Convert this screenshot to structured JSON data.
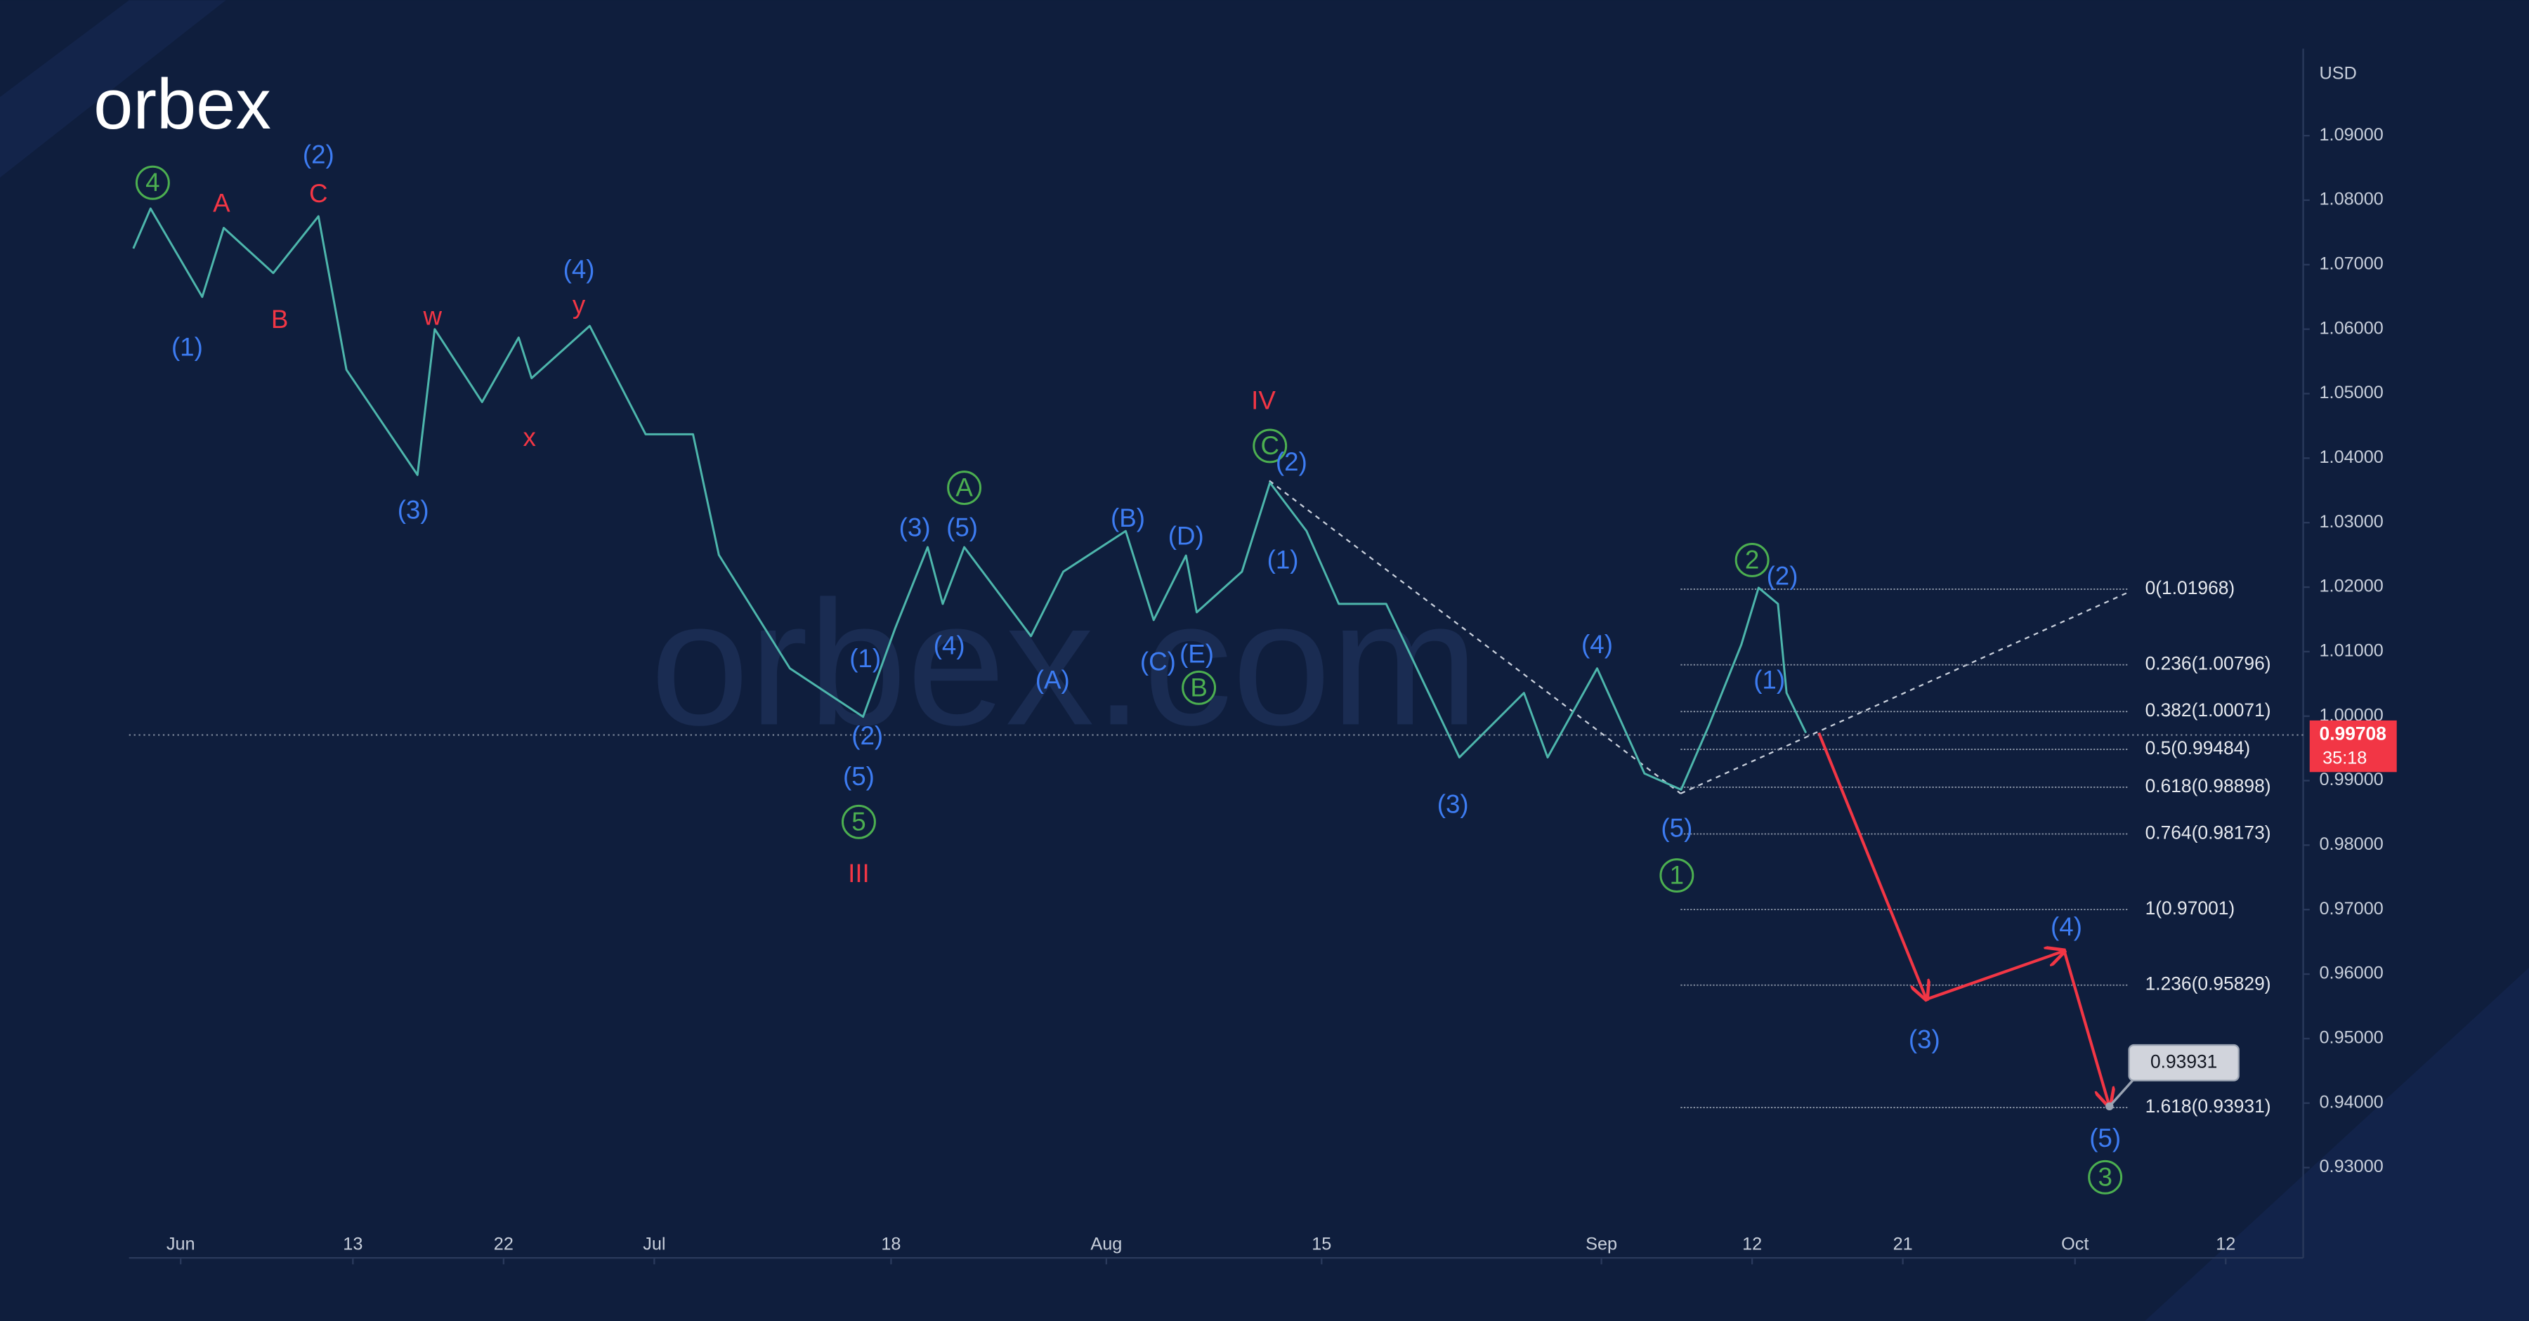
{
  "chart_data": {
    "type": "line",
    "logo": "orbex",
    "watermark": "orbex.com",
    "currency": "USD",
    "xlim": [
      -2.4,
      98.6
    ],
    "ylim": [
      0.921,
      1.111
    ],
    "xticks": [
      {
        "value": 0,
        "label": "Jun"
      },
      {
        "value": 8,
        "label": "13"
      },
      {
        "value": 15,
        "label": "22"
      },
      {
        "value": 22,
        "label": "Jul"
      },
      {
        "value": 33,
        "label": "18"
      },
      {
        "value": 43,
        "label": "Aug"
      },
      {
        "value": 53,
        "label": "15"
      },
      {
        "value": 66,
        "label": "Sep"
      },
      {
        "value": 73,
        "label": "12"
      },
      {
        "value": 80,
        "label": "21"
      },
      {
        "value": 88,
        "label": "Oct"
      },
      {
        "value": 95,
        "label": "12"
      }
    ],
    "yticks": [
      {
        "value": 0.93,
        "label": "0.93000"
      },
      {
        "value": 0.94,
        "label": "0.94000"
      },
      {
        "value": 0.95,
        "label": "0.95000"
      },
      {
        "value": 0.96,
        "label": "0.96000"
      },
      {
        "value": 0.97,
        "label": "0.97000"
      },
      {
        "value": 0.98,
        "label": "0.98000"
      },
      {
        "value": 0.99,
        "label": "0.99000"
      },
      {
        "value": 1.0,
        "label": "1.00000"
      },
      {
        "value": 1.01,
        "label": "1.01000"
      },
      {
        "value": 1.02,
        "label": "1.02000"
      },
      {
        "value": 1.03,
        "label": "1.03000"
      },
      {
        "value": 1.04,
        "label": "1.04000"
      },
      {
        "value": 1.05,
        "label": "1.05000"
      },
      {
        "value": 1.06,
        "label": "1.06000"
      },
      {
        "value": 1.07,
        "label": "1.07000"
      },
      {
        "value": 1.08,
        "label": "1.08000"
      },
      {
        "value": 1.09,
        "label": "1.09000"
      }
    ],
    "series": [
      {
        "color": "#4db6ac",
        "x": [
          -2.2,
          -1.4,
          1,
          2,
          4.3,
          6.4,
          7.7,
          11,
          11.8,
          14,
          15.7,
          16.3,
          19,
          21.6,
          23.8,
          25,
          28.3,
          31.7,
          33.2,
          34.7,
          35.4,
          36.4,
          39.5,
          41,
          43.9,
          45.2,
          46.7,
          47.2,
          49.3,
          50.6,
          52.3,
          53.8,
          56,
          59.4,
          62.4,
          63.5,
          65.8,
          68,
          69.7,
          71,
          72.5,
          73.3,
          74.2,
          74.6,
          75.5
        ],
        "values": [
          1.0725,
          1.0787,
          1.065,
          1.0757,
          1.0687,
          1.0775,
          1.0537,
          1.0374,
          1.06,
          1.0487,
          1.0587,
          1.0524,
          1.0605,
          1.0437,
          1.0437,
          1.025,
          1.0074,
          0.9999,
          1.0137,
          1.0262,
          1.0174,
          1.0262,
          1.0124,
          1.0224,
          1.0287,
          1.0149,
          1.0249,
          1.0161,
          1.0224,
          1.0362,
          1.0287,
          1.0174,
          1.0174,
          0.9936,
          1.0036,
          0.9936,
          1.0074,
          0.9911,
          0.9886,
          0.9986,
          1.0111,
          1.0199,
          1.0174,
          1.0036,
          0.9974
        ]
      }
    ],
    "projection": {
      "color": "#f23645",
      "x": [
        76.1,
        81.1,
        87.5,
        89.6
      ],
      "values": [
        0.9974,
        0.9561,
        0.9636,
        0.9395
      ]
    },
    "current_price": {
      "value": 0.99708,
      "timer": "35:18",
      "color": "#f23645"
    },
    "target_label": 0.93931,
    "fib_levels": [
      {
        "label": "0(1.01968)",
        "value": 1.01968
      },
      {
        "label": "0.236(1.00796)",
        "value": 1.00796
      },
      {
        "label": "0.382(1.00071)",
        "value": 1.00071
      },
      {
        "label": "0.5(0.99484)",
        "value": 0.99484
      },
      {
        "label": "0.618(0.98898)",
        "value": 0.98898
      },
      {
        "label": "0.764(0.98173)",
        "value": 0.98173
      },
      {
        "label": "1(0.97001)",
        "value": 0.97001
      },
      {
        "label": "1.236(0.95829)",
        "value": 0.95829
      },
      {
        "label": "1.618(0.93931)",
        "value": 0.93931
      }
    ],
    "annotations": [
      {
        "text": "4",
        "x": -1.3,
        "y": 1.0827,
        "color": "#4caf50",
        "circled": true
      },
      {
        "text": "(1)",
        "x": 0.3,
        "y": 1.0572,
        "color": "#3d7cf2"
      },
      {
        "text": "A",
        "x": 1.9,
        "y": 1.0795,
        "color": "#f23645"
      },
      {
        "text": "B",
        "x": 4.6,
        "y": 1.0615,
        "color": "#f23645"
      },
      {
        "text": "(2)",
        "x": 6.4,
        "y": 1.087,
        "color": "#3d7cf2"
      },
      {
        "text": "C",
        "x": 6.4,
        "y": 1.081,
        "color": "#f23645"
      },
      {
        "text": "(3)",
        "x": 10.8,
        "y": 1.0319,
        "color": "#3d7cf2"
      },
      {
        "text": "w",
        "x": 11.7,
        "y": 1.062,
        "color": "#f23645"
      },
      {
        "text": "x",
        "x": 16.2,
        "y": 1.0432,
        "color": "#f23645"
      },
      {
        "text": "(4)",
        "x": 18.5,
        "y": 1.0692,
        "color": "#3d7cf2"
      },
      {
        "text": "y",
        "x": 18.5,
        "y": 1.0637,
        "color": "#f23645"
      },
      {
        "text": "(1)",
        "x": 31.8,
        "y": 1.0089,
        "color": "#3d7cf2"
      },
      {
        "text": "(2)",
        "x": 31.9,
        "y": 0.9969,
        "color": "#3d7cf2"
      },
      {
        "text": "(5)",
        "x": 31.5,
        "y": 0.9906,
        "color": "#3d7cf2"
      },
      {
        "text": "5",
        "x": 31.5,
        "y": 0.9836,
        "color": "#4caf50",
        "circled": true
      },
      {
        "text": "III",
        "x": 31.5,
        "y": 0.9756,
        "color": "#f23645"
      },
      {
        "text": "(3)",
        "x": 34.1,
        "y": 1.0292,
        "color": "#3d7cf2"
      },
      {
        "text": "(5)",
        "x": 36.3,
        "y": 1.0292,
        "color": "#3d7cf2"
      },
      {
        "text": "A",
        "x": 36.4,
        "y": 1.0354,
        "color": "#4caf50",
        "circled": true
      },
      {
        "text": "(4)",
        "x": 35.7,
        "y": 1.0109,
        "color": "#3d7cf2"
      },
      {
        "text": "(A)",
        "x": 40.5,
        "y": 1.0056,
        "color": "#3d7cf2"
      },
      {
        "text": "(B)",
        "x": 44.0,
        "y": 1.0307,
        "color": "#3d7cf2"
      },
      {
        "text": "(C)",
        "x": 45.4,
        "y": 1.0084,
        "color": "#3d7cf2"
      },
      {
        "text": "(D)",
        "x": 46.7,
        "y": 1.0279,
        "color": "#3d7cf2"
      },
      {
        "text": "(E)",
        "x": 47.2,
        "y": 1.0096,
        "color": "#3d7cf2"
      },
      {
        "text": "B",
        "x": 47.3,
        "y": 1.0044,
        "color": "#4caf50",
        "circled": true
      },
      {
        "text": "IV",
        "x": 50.3,
        "y": 1.0489,
        "color": "#f23645"
      },
      {
        "text": "C",
        "x": 50.6,
        "y": 1.0419,
        "color": "#4caf50",
        "circled": true
      },
      {
        "text": "(2)",
        "x": 51.6,
        "y": 1.0394,
        "color": "#3d7cf2"
      },
      {
        "text": "(1)",
        "x": 51.2,
        "y": 1.0242,
        "color": "#3d7cf2"
      },
      {
        "text": "(3)",
        "x": 59.1,
        "y": 0.9863,
        "color": "#3d7cf2"
      },
      {
        "text": "(4)",
        "x": 65.8,
        "y": 1.0111,
        "color": "#3d7cf2"
      },
      {
        "text": "(5)",
        "x": 69.5,
        "y": 0.9826,
        "color": "#3d7cf2"
      },
      {
        "text": "1",
        "x": 69.5,
        "y": 0.9753,
        "color": "#4caf50",
        "circled": true
      },
      {
        "text": "2",
        "x": 73.0,
        "y": 1.0242,
        "color": "#4caf50",
        "circled": true
      },
      {
        "text": "(2)",
        "x": 74.4,
        "y": 1.0217,
        "color": "#3d7cf2"
      },
      {
        "text": "(1)",
        "x": 73.8,
        "y": 1.0056,
        "color": "#3d7cf2"
      },
      {
        "text": "(3)",
        "x": 81.0,
        "y": 0.9498,
        "color": "#3d7cf2"
      },
      {
        "text": "(4)",
        "x": 87.6,
        "y": 0.9673,
        "color": "#3d7cf2"
      },
      {
        "text": "(5)",
        "x": 89.4,
        "y": 0.9345,
        "color": "#3d7cf2"
      },
      {
        "text": "3",
        "x": 89.4,
        "y": 0.9285,
        "color": "#4caf50",
        "circled": true
      }
    ]
  }
}
